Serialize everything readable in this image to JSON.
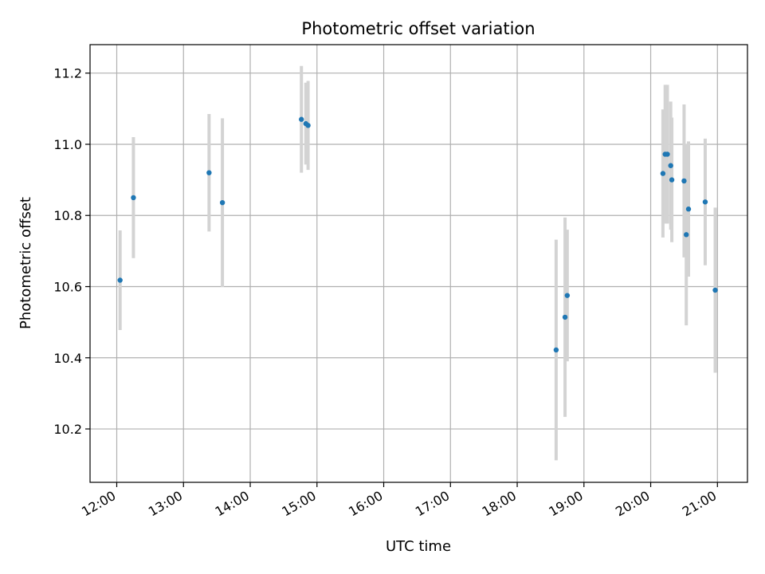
{
  "chart_data": {
    "type": "scatter",
    "title": "Photometric offset variation",
    "xlabel": "UTC time",
    "ylabel": "Photometric offset",
    "x_ticks": [
      "12:00",
      "13:00",
      "14:00",
      "15:00",
      "16:00",
      "17:00",
      "18:00",
      "19:00",
      "20:00",
      "21:00"
    ],
    "y_ticks": [
      "10.2",
      "10.4",
      "10.6",
      "10.8",
      "11.0",
      "11.2"
    ],
    "xlim": [
      "11:36",
      "21:27"
    ],
    "ylim": [
      10.05,
      11.28
    ],
    "grid": true,
    "colors": {
      "point": "#1f77b4",
      "errorbar": "#d3d3d3"
    },
    "series": [
      {
        "points": [
          {
            "time": "12:03",
            "y": 10.618,
            "err": 0.14
          },
          {
            "time": "12:15",
            "y": 10.85,
            "err": 0.17
          },
          {
            "time": "13:23",
            "y": 10.92,
            "err": 0.165
          },
          {
            "time": "13:35",
            "y": 10.836,
            "err": 0.237
          },
          {
            "time": "14:46",
            "y": 11.07,
            "err": 0.15
          },
          {
            "time": "14:50",
            "y": 11.058,
            "err": 0.115
          },
          {
            "time": "14:52",
            "y": 11.053,
            "err": 0.125
          },
          {
            "time": "18:35",
            "y": 10.422,
            "err": 0.31
          },
          {
            "time": "18:43",
            "y": 10.514,
            "err": 0.28
          },
          {
            "time": "18:45",
            "y": 10.575,
            "err": 0.185
          },
          {
            "time": "20:11",
            "y": 10.918,
            "err": 0.18
          },
          {
            "time": "20:13",
            "y": 10.972,
            "err": 0.195
          },
          {
            "time": "20:15",
            "y": 10.972,
            "err": 0.195
          },
          {
            "time": "20:18",
            "y": 10.94,
            "err": 0.18
          },
          {
            "time": "20:19",
            "y": 10.9,
            "err": 0.175
          },
          {
            "time": "20:30",
            "y": 10.897,
            "err": 0.215
          },
          {
            "time": "20:32",
            "y": 10.746,
            "err": 0.255
          },
          {
            "time": "20:34",
            "y": 10.818,
            "err": 0.19
          },
          {
            "time": "20:49",
            "y": 10.838,
            "err": 0.178
          },
          {
            "time": "20:58",
            "y": 10.59,
            "err": 0.232
          }
        ]
      }
    ]
  }
}
